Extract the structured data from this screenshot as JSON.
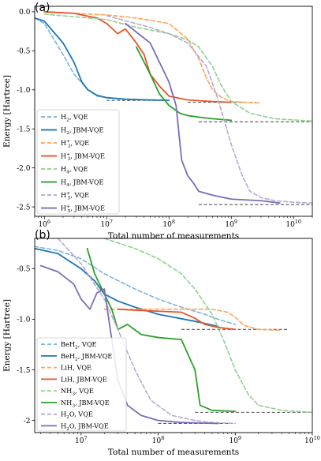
{
  "chart_data": [
    {
      "type": "line",
      "panel_label": "(a)",
      "xlabel": "Total number of measurements",
      "ylabel": "Energy [Hartree]",
      "xscale": "log",
      "xlim": [
        700000,
        20000000000
      ],
      "ylim": [
        -2.62,
        0.07
      ],
      "yticks": [
        0.0,
        -0.5,
        -1.0,
        -1.5,
        -2.0,
        -2.5
      ],
      "ytick_labels": [
        "0.0",
        "-0.5",
        "-1.0",
        "-1.5",
        "-2.0",
        "-2.5"
      ],
      "xticks": [
        1000000,
        10000000,
        100000000,
        1000000000,
        10000000000
      ],
      "xtick_labels": [
        "10^6",
        "10^7",
        "10^8",
        "10^9",
        "10^10"
      ],
      "grid": false,
      "legend_position": "lower-left",
      "series": [
        {
          "label": "H2, VQE",
          "color": "#7fb4dc",
          "style": "dashed",
          "x": [
            700000,
            1000000,
            2000000,
            3000000,
            5000000,
            7000000,
            10000000,
            20000000,
            50000000,
            100000000
          ],
          "y": [
            -0.08,
            -0.15,
            -0.55,
            -0.8,
            -1.0,
            -1.08,
            -1.1,
            -1.12,
            -1.13,
            -1.135
          ]
        },
        {
          "label": "H2, JBM-VQE",
          "color": "#1f77b4",
          "style": "solid",
          "x": [
            700000,
            1000000,
            2000000,
            3000000,
            4000000,
            5000000,
            7000000,
            10000000,
            20000000,
            50000000,
            100000000
          ],
          "y": [
            -0.08,
            -0.12,
            -0.4,
            -0.65,
            -0.9,
            -1.0,
            -1.07,
            -1.1,
            -1.12,
            -1.13,
            -1.135
          ]
        },
        {
          "label": "H3+, VQE",
          "color": "#ffa65c",
          "style": "dashed",
          "x": [
            1000000,
            3000000,
            10000000,
            30000000,
            100000000,
            200000000,
            300000000,
            400000000,
            500000000,
            700000000,
            1000000000,
            3000000000
          ],
          "y": [
            0.0,
            -0.02,
            -0.04,
            -0.08,
            -0.15,
            -0.35,
            -0.6,
            -0.85,
            -1.0,
            -1.1,
            -1.15,
            -1.17
          ]
        },
        {
          "label": "H3+, JBM-VQE",
          "color": "#e8542a",
          "style": "solid",
          "x": [
            1000000,
            3000000,
            7000000,
            10000000,
            15000000,
            20000000,
            30000000,
            40000000,
            50000000,
            70000000,
            100000000,
            200000000,
            500000000,
            1000000000
          ],
          "y": [
            0.0,
            -0.02,
            -0.08,
            -0.15,
            -0.28,
            -0.22,
            -0.4,
            -0.55,
            -0.8,
            -0.95,
            -1.08,
            -1.13,
            -1.15,
            -1.16
          ]
        },
        {
          "label": "H4, VQE",
          "color": "#8fd28f",
          "style": "dashed",
          "x": [
            1000000,
            10000000,
            30000000,
            100000000,
            200000000,
            300000000,
            500000000,
            700000000,
            1000000000,
            2000000000,
            5000000000,
            20000000000
          ],
          "y": [
            -0.03,
            -0.1,
            -0.2,
            -0.28,
            -0.36,
            -0.45,
            -0.7,
            -0.95,
            -1.15,
            -1.3,
            -1.37,
            -1.4
          ]
        },
        {
          "label": "H4, JBM-VQE",
          "color": "#2ca02c",
          "style": "solid",
          "x": [
            30000000,
            50000000,
            70000000,
            100000000,
            150000000,
            200000000,
            300000000,
            500000000,
            700000000,
            1000000000
          ],
          "y": [
            -0.45,
            -0.8,
            -1.05,
            -1.2,
            -1.3,
            -1.33,
            -1.35,
            -1.37,
            -1.38,
            -1.39
          ]
        },
        {
          "label": "H5+, VQE",
          "color": "#b9a8d4",
          "style": "dashed",
          "x": [
            10000000,
            50000000,
            100000000,
            200000000,
            400000000,
            600000000,
            1000000000,
            1500000000,
            2000000000,
            3000000000,
            5000000000,
            10000000000,
            20000000000
          ],
          "y": [
            -0.05,
            -0.2,
            -0.28,
            -0.4,
            -0.7,
            -1.1,
            -1.7,
            -2.1,
            -2.3,
            -2.38,
            -2.42,
            -2.44,
            -2.45
          ]
        },
        {
          "label": "H5+, JBM-VQE",
          "color": "#7e6bb8",
          "style": "solid",
          "x": [
            20000000,
            50000000,
            100000000,
            130000000,
            160000000,
            200000000,
            250000000,
            300000000,
            500000000,
            1000000000,
            3000000000,
            6000000000
          ],
          "y": [
            -0.15,
            -0.4,
            -0.9,
            -1.2,
            -1.9,
            -2.1,
            -2.2,
            -2.3,
            -2.35,
            -2.4,
            -2.42,
            -2.45
          ]
        }
      ],
      "reference_lines": [
        {
          "y": -1.135,
          "xmin": 10000000,
          "xmax": 80000000
        },
        {
          "y": -1.16,
          "xmin": 200000000,
          "xmax": 2500000000
        },
        {
          "y": -1.41,
          "xmin": 300000000,
          "xmax": 20000000000
        },
        {
          "y": -2.47,
          "xmin": 300000000,
          "xmax": 20000000000
        }
      ]
    },
    {
      "type": "line",
      "panel_label": "(b)",
      "xlabel": "Total number of measurements",
      "ylabel": "Energy [Hartree]",
      "xscale": "log",
      "xlim": [
        2500000,
        10000000000
      ],
      "ylim": [
        -2.12,
        -0.2
      ],
      "yticks": [
        -0.5,
        -1.0,
        -1.5,
        -2.0
      ],
      "ytick_labels": [
        "-0.5",
        "-1.0",
        "-1.5",
        "-2"
      ],
      "xticks": [
        10000000,
        100000000,
        1000000000,
        10000000000
      ],
      "xtick_labels": [
        "10^7",
        "10^8",
        "10^9",
        "10^10"
      ],
      "grid": false,
      "legend_position": "lower-left",
      "series": [
        {
          "label": "BeH2, VQE",
          "color": "#7fb4dc",
          "style": "dashed",
          "x": [
            2500000,
            5000000,
            10000000,
            20000000,
            50000000,
            100000000,
            200000000,
            400000000,
            600000000,
            1000000000
          ],
          "y": [
            -0.28,
            -0.32,
            -0.4,
            -0.55,
            -0.7,
            -0.8,
            -0.88,
            -0.95,
            -1.0,
            -1.05
          ]
        },
        {
          "label": "BeH2, JBM-VQE",
          "color": "#1f77b4",
          "style": "solid",
          "x": [
            2500000,
            5000000,
            10000000,
            15000000,
            20000000,
            30000000,
            50000000,
            100000000,
            300000000,
            600000000
          ],
          "y": [
            -0.3,
            -0.35,
            -0.5,
            -0.62,
            -0.75,
            -0.82,
            -0.88,
            -0.95,
            -1.02,
            -1.07
          ]
        },
        {
          "label": "LiH, VQE",
          "color": "#ffa65c",
          "style": "dashed",
          "x": [
            20000000,
            50000000,
            100000000,
            200000000,
            500000000,
            800000000,
            1000000000,
            1300000000,
            2000000000,
            4000000000
          ],
          "y": [
            -0.9,
            -0.9,
            -0.9,
            -0.9,
            -0.9,
            -0.93,
            -0.98,
            -1.06,
            -1.1,
            -1.11
          ]
        },
        {
          "label": "LiH, JBM-VQE",
          "color": "#e8542a",
          "style": "solid",
          "x": [
            30000000,
            50000000,
            100000000,
            200000000,
            300000000,
            400000000,
            600000000,
            1000000000
          ],
          "y": [
            -0.9,
            -0.91,
            -0.92,
            -0.93,
            -0.99,
            -1.05,
            -1.08,
            -1.1
          ]
        },
        {
          "label": "NH3, VQE",
          "color": "#8fd28f",
          "style": "dashed",
          "x": [
            20000000,
            50000000,
            100000000,
            200000000,
            300000000,
            500000000,
            700000000,
            1000000000,
            1500000000,
            2000000000,
            4000000000,
            10000000000
          ],
          "y": [
            -0.2,
            -0.3,
            -0.4,
            -0.55,
            -0.7,
            -0.95,
            -1.2,
            -1.5,
            -1.75,
            -1.85,
            -1.9,
            -1.92
          ]
        },
        {
          "label": "NH3, JBM-VQE",
          "color": "#2ca02c",
          "style": "solid",
          "x": [
            12000000,
            15000000,
            20000000,
            25000000,
            30000000,
            40000000,
            60000000,
            100000000,
            200000000,
            300000000,
            350000000,
            500000000,
            1000000000
          ],
          "y": [
            -0.3,
            -0.55,
            -0.75,
            -0.9,
            -1.1,
            -1.05,
            -1.15,
            -1.18,
            -1.2,
            -1.5,
            -1.85,
            -1.9,
            -1.91
          ]
        },
        {
          "label": "H2O, VQE",
          "color": "#b9a8d4",
          "style": "dashed",
          "x": [
            5000000,
            10000000,
            20000000,
            30000000,
            50000000,
            80000000,
            150000000,
            300000000,
            500000000,
            1000000000
          ],
          "y": [
            -0.2,
            -0.45,
            -0.8,
            -1.1,
            -1.5,
            -1.8,
            -1.95,
            -2.0,
            -2.02,
            -2.03
          ]
        },
        {
          "label": "H2O, JBM-VQE",
          "color": "#7e6bb8",
          "style": "solid",
          "x": [
            3000000,
            5000000,
            8000000,
            10000000,
            13000000,
            16000000,
            20000000,
            25000000,
            30000000,
            40000000,
            60000000,
            100000000,
            200000000,
            600000000
          ],
          "y": [
            -0.47,
            -0.53,
            -0.65,
            -0.8,
            -0.9,
            -0.74,
            -0.7,
            -1.2,
            -1.6,
            -1.85,
            -1.95,
            -2.0,
            -2.02,
            -2.03
          ]
        }
      ],
      "reference_lines": [
        {
          "y": -1.1,
          "xmin": 200000000,
          "xmax": 5000000000
        },
        {
          "y": -1.92,
          "xmin": 300000000,
          "xmax": 10000000000
        },
        {
          "y": -2.03,
          "xmin": 100000000,
          "xmax": 1000000000
        }
      ]
    }
  ],
  "legends": [
    [
      {
        "base": "H",
        "sub": "2",
        "sup": "",
        "suffix": ", VQE",
        "color": "#7fb4dc",
        "style": "dashed"
      },
      {
        "base": "H",
        "sub": "2",
        "sup": "",
        "suffix": ", JBM-VQE",
        "color": "#1f77b4",
        "style": "solid"
      },
      {
        "base": "H",
        "sub": "3",
        "sup": "+",
        "suffix": ", VQE",
        "color": "#ffa65c",
        "style": "dashed"
      },
      {
        "base": "H",
        "sub": "3",
        "sup": "+",
        "suffix": ", JBM-VQE",
        "color": "#e8542a",
        "style": "solid"
      },
      {
        "base": "H",
        "sub": "4",
        "sup": "",
        "suffix": ", VQE",
        "color": "#8fd28f",
        "style": "dashed"
      },
      {
        "base": "H",
        "sub": "4",
        "sup": "",
        "suffix": ", JBM-VQE",
        "color": "#2ca02c",
        "style": "solid"
      },
      {
        "base": "H",
        "sub": "5",
        "sup": "+",
        "suffix": ", VQE",
        "color": "#b9a8d4",
        "style": "dashed"
      },
      {
        "base": "H",
        "sub": "5",
        "sup": "+",
        "suffix": ", JBM-VQE",
        "color": "#7e6bb8",
        "style": "solid"
      }
    ],
    [
      {
        "base": "BeH",
        "sub": "2",
        "sup": "",
        "suffix": ", VQE",
        "color": "#7fb4dc",
        "style": "dashed"
      },
      {
        "base": "BeH",
        "sub": "2",
        "sup": "",
        "suffix": ", JBM-VQE",
        "color": "#1f77b4",
        "style": "solid"
      },
      {
        "base": "LiH",
        "sub": "",
        "sup": "",
        "suffix": ", VQE",
        "color": "#ffa65c",
        "style": "dashed"
      },
      {
        "base": "LiH",
        "sub": "",
        "sup": "",
        "suffix": ", JBM-VQE",
        "color": "#e8542a",
        "style": "solid"
      },
      {
        "base": "NH",
        "sub": "3",
        "sup": "",
        "suffix": ", VQE",
        "color": "#8fd28f",
        "style": "dashed"
      },
      {
        "base": "NH",
        "sub": "3",
        "sup": "",
        "suffix": ", JBM-VQE",
        "color": "#2ca02c",
        "style": "solid"
      },
      {
        "base": "H",
        "sub": "2",
        "sup": "",
        "suffix": "O, VQE",
        "color": "#b9a8d4",
        "style": "dashed"
      },
      {
        "base": "H",
        "sub": "2",
        "sup": "",
        "suffix": "O, JBM-VQE",
        "color": "#7e6bb8",
        "style": "solid"
      }
    ]
  ]
}
